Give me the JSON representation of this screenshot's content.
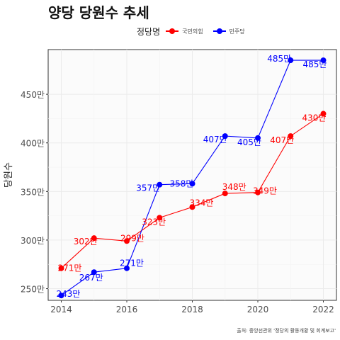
{
  "chart_data": {
    "type": "line",
    "title": "양당 당원수 추세",
    "xlabel": "",
    "ylabel": "당원수",
    "legend_title": "정당명",
    "legend_position": "top",
    "caption": "출처: 중앙선관위 '정당의 활동개황 및 회계보고'",
    "x": [
      2014,
      2015,
      2016,
      2017,
      2018,
      2019,
      2020,
      2021,
      2022
    ],
    "xticks": [
      2014,
      2016,
      2018,
      2020,
      2022
    ],
    "xtick_labels": [
      "2014",
      "2016",
      "2018",
      "2020",
      "2022"
    ],
    "xlim": [
      2013.6,
      2022.4
    ],
    "yticks": [
      250,
      300,
      350,
      400,
      450
    ],
    "ytick_labels": [
      "250만",
      "300만",
      "350만",
      "400만",
      "450만"
    ],
    "ylim": [
      238,
      496
    ],
    "grid": true,
    "series": [
      {
        "name": "국민의힘",
        "color": "#ff0000",
        "values": [
          271,
          302,
          299,
          323,
          334,
          348,
          349,
          407,
          430
        ],
        "labels": [
          "271만",
          "302만",
          "299만",
          "323만",
          "334만",
          "348만",
          "349만",
          "407만",
          "430만"
        ]
      },
      {
        "name": "민주당",
        "color": "#0000ff",
        "values": [
          243,
          267,
          271,
          357,
          358,
          407,
          405,
          485,
          485
        ],
        "labels": [
          "243만",
          "267만",
          "271만",
          "357만",
          "358만",
          "407만",
          "405만",
          "485만",
          "485만"
        ]
      }
    ]
  }
}
